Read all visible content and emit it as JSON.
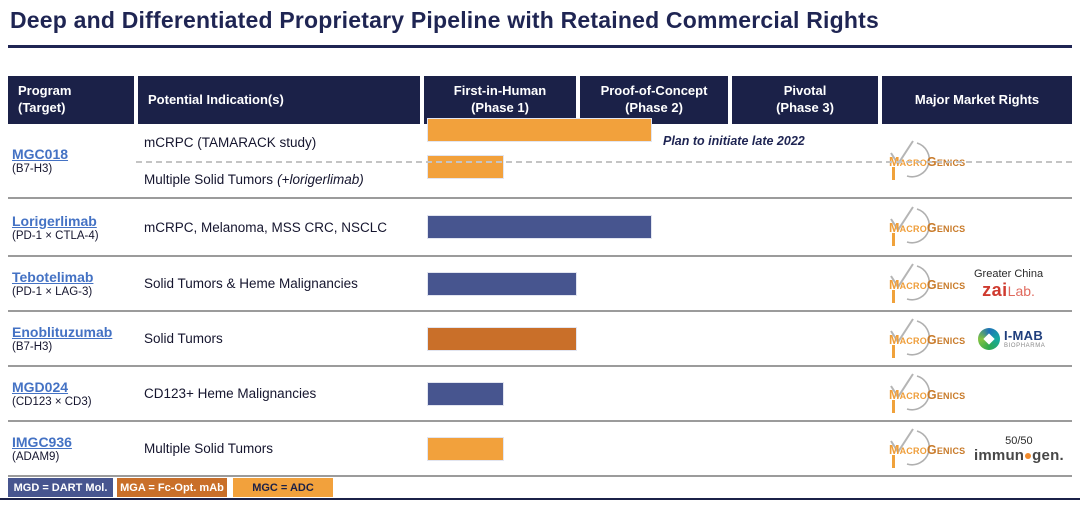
{
  "title": "Deep and Differentiated Proprietary Pipeline with Retained Commercial Rights",
  "header": {
    "program": {
      "line1": "Program",
      "line2": "(Target)"
    },
    "indication": "Potential Indication(s)",
    "phase1": {
      "line1": "First-in-Human",
      "line2": "(Phase 1)"
    },
    "phase2": {
      "line1": "Proof-of-Concept",
      "line2": "(Phase 2)"
    },
    "phase3": {
      "line1": "Pivotal",
      "line2": "(Phase 3)"
    },
    "rights": "Major Market Rights"
  },
  "palette": {
    "dart": "#47558F",
    "fcopt": "#C96F29",
    "adc": "#F2A13C"
  },
  "rows": [
    {
      "program": "MGC018",
      "target": "(B7-H3)",
      "studies": [
        {
          "indication": "mCRPC (TAMARACK study)",
          "bar": {
            "phases": 1.5,
            "type": "adc"
          },
          "annotation": "Plan to initiate late 2022"
        },
        {
          "indication": "Multiple Solid Tumors",
          "note": "(+lorigerlimab)",
          "bar": {
            "phases": 0.5,
            "type": "adc"
          }
        }
      ]
    },
    {
      "program": "Lorigerlimab",
      "target": "(PD-1 × CTLA-4)",
      "studies": [
        {
          "indication": "mCRPC, Melanoma, MSS CRC, NSCLC",
          "bar": {
            "phases": 1.5,
            "type": "dart"
          }
        }
      ]
    },
    {
      "program": "Tebotelimab",
      "target": "(PD-1 × LAG-3)",
      "studies": [
        {
          "indication": "Solid Tumors & Heme Malignancies",
          "bar": {
            "phases": 1.0,
            "type": "dart"
          }
        }
      ]
    },
    {
      "program": "Enoblituzumab",
      "target": "(B7-H3)",
      "studies": [
        {
          "indication": "Solid Tumors",
          "bar": {
            "phases": 1.0,
            "type": "fcopt"
          }
        }
      ]
    },
    {
      "program": "MGD024",
      "target": "(CD123 × CD3)",
      "studies": [
        {
          "indication": "CD123+ Heme Malignancies",
          "bar": {
            "phases": 0.5,
            "type": "dart"
          }
        }
      ]
    },
    {
      "program": "IMGC936",
      "target": "(ADAM9)",
      "studies": [
        {
          "indication": "Multiple Solid Tumors",
          "bar": {
            "phases": 0.5,
            "type": "adc"
          }
        }
      ]
    }
  ],
  "logos": {
    "macrogenics": {
      "part1": "Macro",
      "part2": "Genics"
    },
    "zai": {
      "region": "Greater China",
      "part1": "zai",
      "part2": "Lab."
    },
    "imab": {
      "name": "I-MAB",
      "sub": "BIOPHARMA"
    },
    "immunogen": {
      "share": "50/50",
      "part1": "immun",
      "part2": "gen."
    }
  },
  "legend": [
    {
      "label": "MGD = DART Mol.",
      "type": "dart",
      "text_color": "#FFFFFF"
    },
    {
      "label": "MGA = Fc-Opt. mAb",
      "type": "fcopt",
      "text_color": "#FFFFFF"
    },
    {
      "label": "MGC = ADC",
      "type": "adc",
      "text_color": "#1B2148"
    }
  ],
  "chart_data": {
    "type": "bar",
    "orientation": "horizontal",
    "title": "Deep and Differentiated Proprietary Pipeline with Retained Commercial Rights",
    "phases": [
      "First-in-Human (Phase 1)",
      "Proof-of-Concept (Phase 2)",
      "Pivotal (Phase 3)"
    ],
    "unit": "clinical phases reached (bar length from start of Phase 1, of 3 phases total)",
    "series": [
      {
        "program": "MGC018 (B7-H3)",
        "indication": "mCRPC (TAMARACK study)",
        "phases_reached": 1.5,
        "category": "MGC = ADC",
        "annotation": "Plan to initiate late 2022",
        "major_market_rights": [
          "MacroGenics"
        ]
      },
      {
        "program": "MGC018 (B7-H3)",
        "indication": "Multiple Solid Tumors (+lorigerlimab)",
        "phases_reached": 0.5,
        "category": "MGC = ADC",
        "major_market_rights": [
          "MacroGenics"
        ]
      },
      {
        "program": "Lorigerlimab (PD-1 × CTLA-4)",
        "indication": "mCRPC, Melanoma, MSS CRC, NSCLC",
        "phases_reached": 1.5,
        "category": "MGD = DART Mol.",
        "major_market_rights": [
          "MacroGenics"
        ]
      },
      {
        "program": "Tebotelimab (PD-1 × LAG-3)",
        "indication": "Solid Tumors & Heme Malignancies",
        "phases_reached": 1.0,
        "category": "MGD = DART Mol.",
        "major_market_rights": [
          "MacroGenics",
          "Zai Lab (Greater China)"
        ]
      },
      {
        "program": "Enoblituzumab (B7-H3)",
        "indication": "Solid Tumors",
        "phases_reached": 1.0,
        "category": "MGA = Fc-Opt. mAb",
        "major_market_rights": [
          "MacroGenics",
          "I-MAB Biopharma"
        ]
      },
      {
        "program": "MGD024 (CD123 × CD3)",
        "indication": "CD123+ Heme Malignancies",
        "phases_reached": 0.5,
        "category": "MGD = DART Mol.",
        "major_market_rights": [
          "MacroGenics"
        ]
      },
      {
        "program": "IMGC936 (ADAM9)",
        "indication": "Multiple Solid Tumors",
        "phases_reached": 0.5,
        "category": "MGC = ADC",
        "major_market_rights": [
          "MacroGenics",
          "ImmunoGen (50/50)"
        ]
      }
    ],
    "legend_entries": [
      "MGD = DART Mol.",
      "MGA = Fc-Opt. mAb",
      "MGC = ADC"
    ],
    "legend_position": "bottom-left"
  }
}
